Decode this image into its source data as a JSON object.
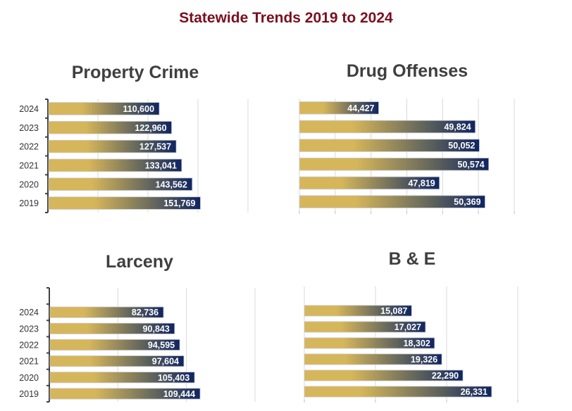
{
  "page_title": "Statewide Trends 2019 to 2024",
  "colors": {
    "title": "#7A0F1E",
    "chart_title": "#3F3F3F",
    "bar_gold": "#D6B65A",
    "bar_mid": "#5E625C",
    "bar_navy": "#0F2460",
    "gridline": "#D9D9D9",
    "axis": "#404040"
  },
  "chart_data": [
    {
      "id": "property",
      "type": "bar",
      "orientation": "horizontal",
      "title": "Property Crime",
      "categories": [
        "2024",
        "2023",
        "2022",
        "2021",
        "2020",
        "2019"
      ],
      "values": [
        110600,
        122960,
        127537,
        133041,
        143562,
        151769
      ],
      "value_labels": [
        "110,600",
        "122,960",
        "127,537",
        "133,041",
        "143,562",
        "151,769"
      ],
      "xlim": [
        0,
        200000
      ],
      "x_grid_step": 50000,
      "grid": true,
      "show_category_labels": true,
      "empty_top_slot": false,
      "legend": "none"
    },
    {
      "id": "drug",
      "type": "bar",
      "orientation": "horizontal",
      "title": "Drug Offenses",
      "categories": [
        "2024",
        "2023",
        "2022",
        "2021",
        "2020",
        "2019"
      ],
      "values": [
        44427,
        49824,
        50052,
        50574,
        47819,
        50369
      ],
      "value_labels": [
        "44,427",
        "49,824",
        "50,052",
        "50,574",
        "47,819",
        "50,369"
      ],
      "xlim": [
        40000,
        52000
      ],
      "x_grid_step": 2000,
      "grid": true,
      "show_category_labels": false,
      "empty_top_slot": false,
      "legend": "none"
    },
    {
      "id": "larceny",
      "type": "bar",
      "orientation": "horizontal",
      "title": "Larceny",
      "categories": [
        "2024",
        "2023",
        "2022",
        "2021",
        "2020",
        "2019"
      ],
      "values": [
        82736,
        90843,
        94595,
        97604,
        105403,
        109444
      ],
      "value_labels": [
        "82,736",
        "90,843",
        "94,595",
        "97,604",
        "105,403",
        "109,444"
      ],
      "xlim": [
        0,
        150000
      ],
      "x_grid_step": 50000,
      "grid": true,
      "show_category_labels": true,
      "empty_top_slot": true,
      "legend": "none"
    },
    {
      "id": "be",
      "type": "bar",
      "orientation": "horizontal",
      "title": "B & E",
      "categories": [
        "2024",
        "2023",
        "2022",
        "2021",
        "2020",
        "2019"
      ],
      "values": [
        15087,
        17027,
        18302,
        19326,
        22290,
        26331
      ],
      "value_labels": [
        "15,087",
        "17,027",
        "18,302",
        "19,326",
        "22,290",
        "26,331"
      ],
      "xlim": [
        0,
        30000
      ],
      "x_grid_step": 10000,
      "grid": true,
      "show_category_labels": false,
      "empty_top_slot": true,
      "legend": "none"
    }
  ]
}
